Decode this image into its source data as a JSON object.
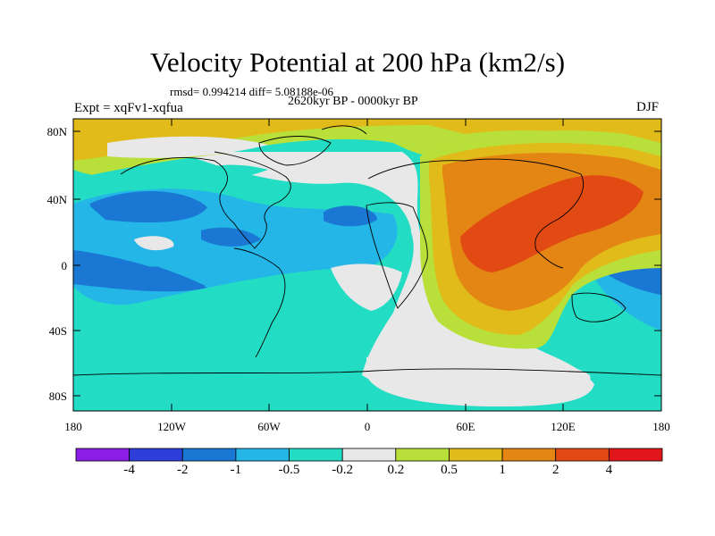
{
  "title": "Velocity Potential at 200 hPa (km2/s)",
  "stats_line": "rmsd= 0.994214 diff= 5.08188e-06",
  "period_line": "2620kyr BP - 0000kyr BP",
  "experiment_label": "Expt = xqFv1-xqfua",
  "season_label": "DJF",
  "lat_labels": [
    "80N",
    "40N",
    "0",
    "40S",
    "80S"
  ],
  "lon_labels": [
    "180",
    "120W",
    "60W",
    "0",
    "60E",
    "120E",
    "180"
  ],
  "colorbar": {
    "colors": [
      "#8a1ee6",
      "#2e3fd9",
      "#1a78d4",
      "#23b6e6",
      "#22ddc4",
      "#e8e8e8",
      "#b9e03a",
      "#e0bb19",
      "#e48614",
      "#e24a13",
      "#e0161a"
    ],
    "labels": [
      "-4",
      "-2",
      "-1",
      "-0.5",
      "-0.2",
      "0.2",
      "0.5",
      "1",
      "2",
      "4"
    ]
  }
}
